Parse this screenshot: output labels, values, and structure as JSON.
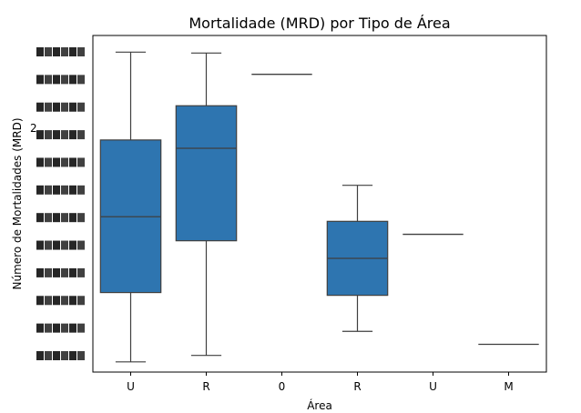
{
  "chart_data": {
    "type": "box",
    "title": "Mortalidade (MRD) por Tipo de Área",
    "xlabel": "Área",
    "ylabel": "Número de Mortalidades (MRD)",
    "categories": [
      "U",
      "R",
      "0",
      "R",
      "U",
      "M"
    ],
    "y_tick_visible": "2",
    "y_tick_note": "Overlapping unreadable categorical y-tick labels",
    "box_color": "#2e75b0",
    "boxes": [
      {
        "category": "U",
        "whisker_low": 1,
        "q1": 76,
        "median": 158,
        "q3": 241,
        "whisker_high": 336
      },
      {
        "category": "R",
        "whisker_low": 8,
        "q1": 132,
        "median": 232,
        "q3": 278,
        "whisker_high": 335
      },
      {
        "category": "0",
        "whisker_low": 312,
        "q1": 312,
        "median": 312,
        "q3": 312,
        "whisker_high": 312
      },
      {
        "category": "R",
        "whisker_low": 34,
        "q1": 73,
        "median": 113,
        "q3": 153,
        "whisker_high": 192
      },
      {
        "category": "U",
        "whisker_low": 139,
        "q1": 139,
        "median": 139,
        "q3": 139,
        "whisker_high": 139
      },
      {
        "category": "M",
        "whisker_low": 20,
        "q1": 20,
        "median": 20,
        "q3": 20,
        "whisker_high": 20
      }
    ],
    "ylim": [
      -10,
      354
    ],
    "grid": false,
    "legend": "none"
  }
}
